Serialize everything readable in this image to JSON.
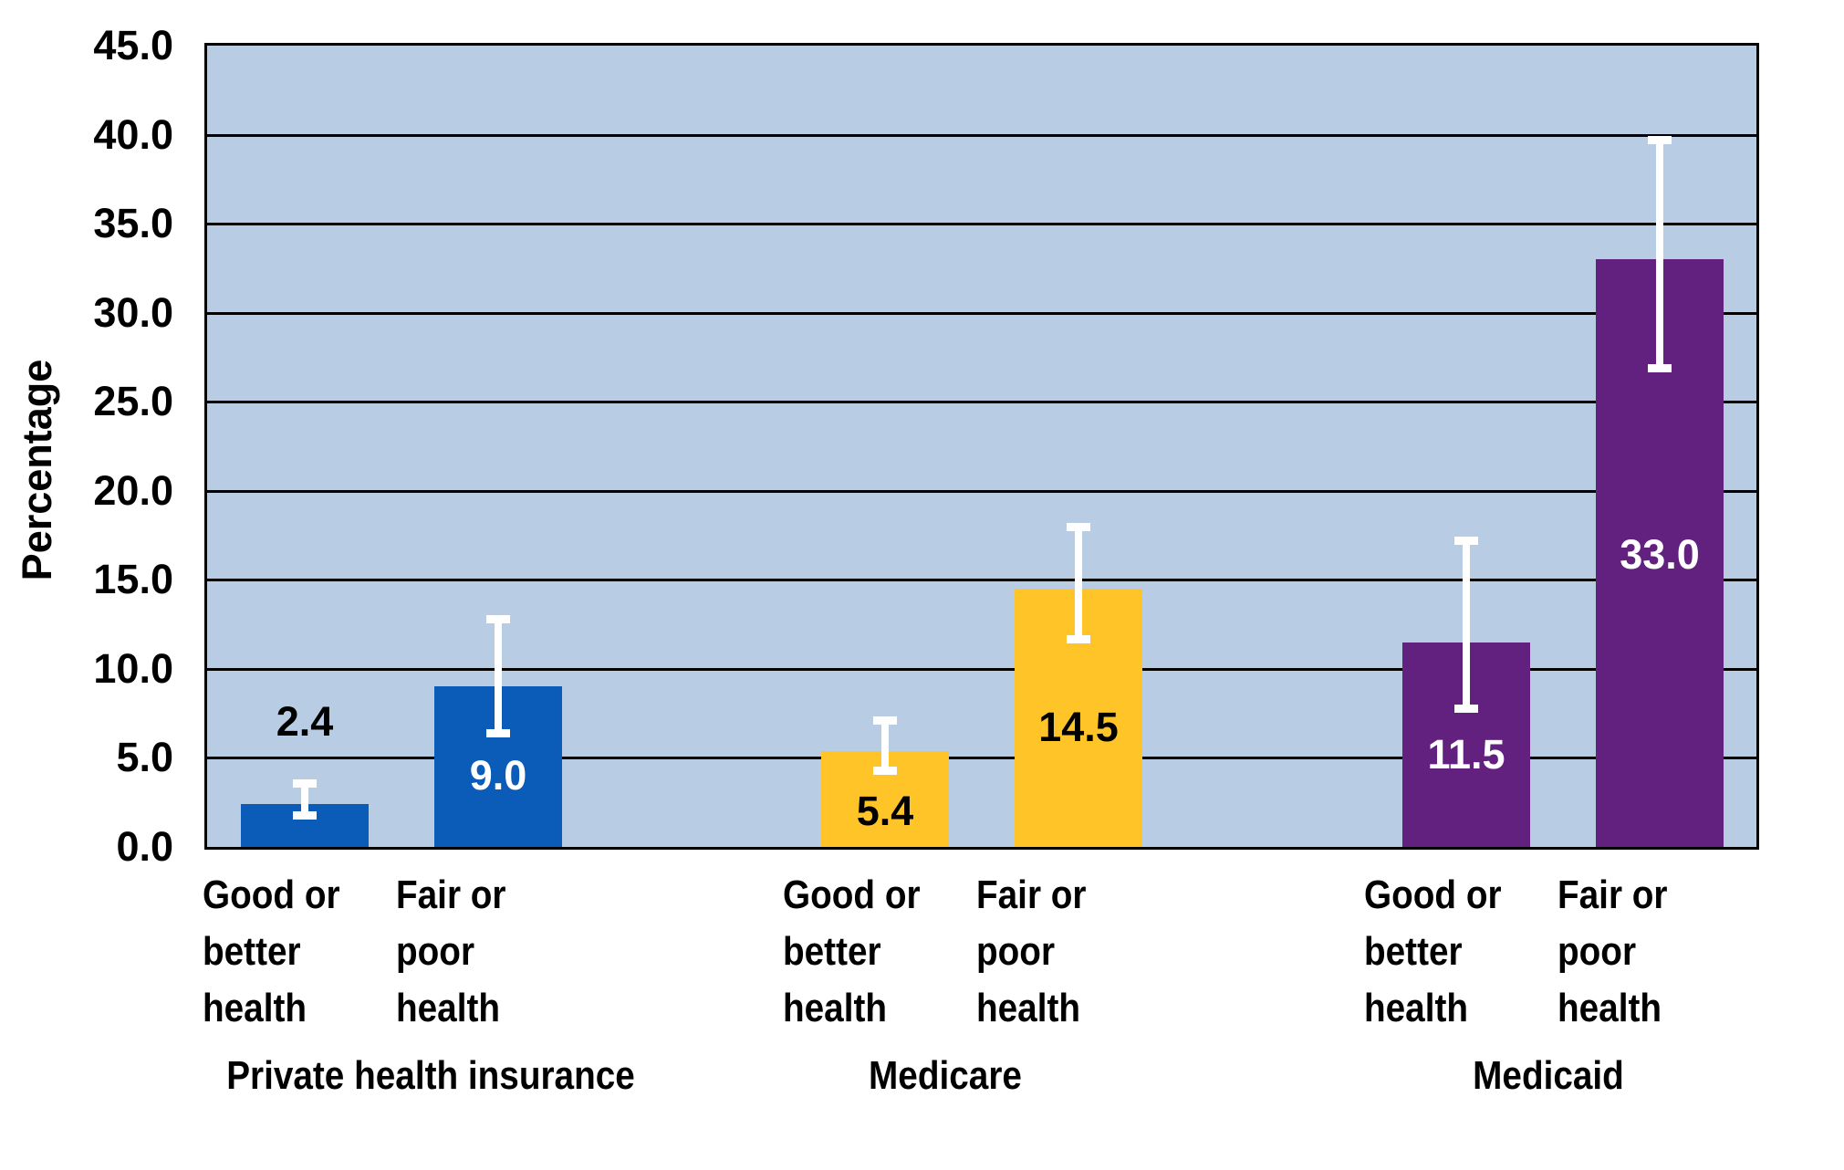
{
  "chart_data": {
    "type": "bar",
    "title": "",
    "ylabel": "Percentage",
    "xlabel": "",
    "legend": false,
    "grid": true,
    "plot_bg": "#B8CCE4",
    "gridline_color": "#000000",
    "error_bar_color": "#FFFFFF",
    "y_axis": {
      "min": 0,
      "max": 45,
      "step": 5,
      "tick_labels": [
        "0.0",
        "5.0",
        "10.0",
        "15.0",
        "20.0",
        "25.0",
        "30.0",
        "35.0",
        "40.0",
        "45.0"
      ]
    },
    "groups": [
      {
        "label": "Private health insurance",
        "color": "#0A5CB8",
        "bars": [
          {
            "category_lines": [
              "Good or",
              "better",
              "health"
            ],
            "value": 2.4,
            "value_label": "2.4",
            "err_low": 1.8,
            "err_high": 3.6,
            "label_color": "#000000",
            "label_y": 7.0
          },
          {
            "category_lines": [
              "Fair or",
              "poor",
              "health"
            ],
            "value": 9.0,
            "value_label": "9.0",
            "err_low": 6.4,
            "err_high": 12.8,
            "label_color": "#FFFFFF",
            "label_y": 4.0
          }
        ]
      },
      {
        "label": "Medicare",
        "color": "#FFC428",
        "bars": [
          {
            "category_lines": [
              "Good or",
              "better",
              "health"
            ],
            "value": 5.4,
            "value_label": "5.4",
            "err_low": 4.3,
            "err_high": 7.1,
            "label_color": "#000000",
            "label_y": 2.0
          },
          {
            "category_lines": [
              "Fair or",
              "poor",
              "health"
            ],
            "value": 14.5,
            "value_label": "14.5",
            "err_low": 11.7,
            "err_high": 18.0,
            "label_color": "#000000",
            "label_y": 6.7
          }
        ]
      },
      {
        "label": "Medicaid",
        "color": "#62217E",
        "bars": [
          {
            "category_lines": [
              "Good or",
              "better",
              "health"
            ],
            "value": 11.5,
            "value_label": "11.5",
            "err_low": 7.8,
            "err_high": 17.2,
            "label_color": "#FFFFFF",
            "label_y": 5.2
          },
          {
            "category_lines": [
              "Fair or",
              "poor",
              "health"
            ],
            "value": 33.0,
            "value_label": "33.0",
            "err_low": 26.9,
            "err_high": 39.7,
            "label_color": "#FFFFFF",
            "label_y": 16.4
          }
        ]
      }
    ]
  }
}
